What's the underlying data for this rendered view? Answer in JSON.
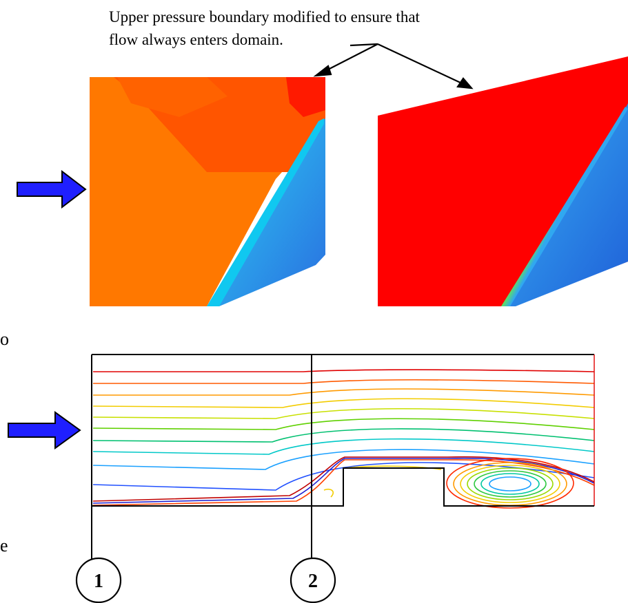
{
  "annotation": {
    "line1": "Upper pressure boundary modified to ensure that",
    "line2": "flow always enters domain."
  },
  "edge_text": {
    "top": "o",
    "bottom": "e"
  },
  "stations": [
    {
      "label": "1"
    },
    {
      "label": "2"
    }
  ],
  "colors": {
    "flow_arrow": "#1f1fff",
    "outline": "#000000",
    "left_panel_main": "#ff7800",
    "left_panel_top": "#ff4a00",
    "right_panel_main": "#ff0000",
    "cool_region": "#2b95e6",
    "cool_region_light": "#10c8f0"
  },
  "streamline_colors": [
    "#e00000",
    "#ff5a00",
    "#ff9a00",
    "#f2cc00",
    "#c8e000",
    "#5fd000",
    "#00c070",
    "#00c8c8",
    "#1aa0ff",
    "#2050ff",
    "#2020d0"
  ]
}
